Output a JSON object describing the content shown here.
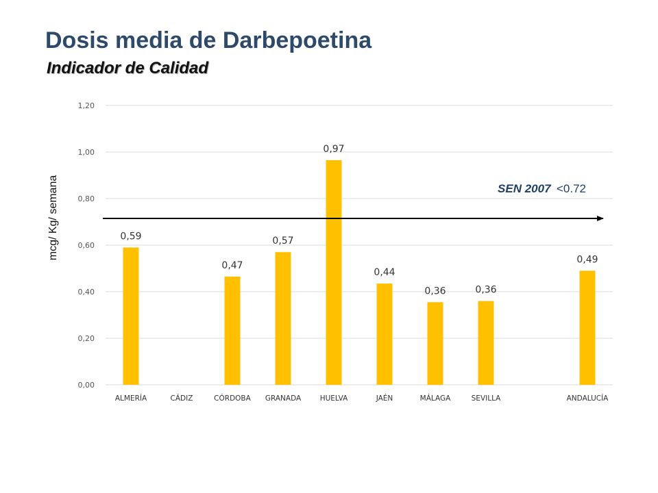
{
  "header": {
    "title": "Dosis media de Darbepoetina",
    "subtitle": "Indicador de Calidad"
  },
  "chart_data": {
    "type": "bar",
    "categories": [
      "ALMERÍA",
      "CÁDIZ",
      "CÓRDOBA",
      "GRANADA",
      "HUELVA",
      "JAÉN",
      "MÁLAGA",
      "SEVILLA",
      "",
      "ANDALUCÍA"
    ],
    "values": [
      0.59,
      null,
      0.465,
      0.57,
      0.965,
      0.435,
      0.355,
      0.36,
      null,
      0.49
    ],
    "data_labels": [
      "0,59",
      "",
      "0,47",
      "0,57",
      "0,97",
      "0,44",
      "0,36",
      "0,36",
      "",
      "0,49"
    ],
    "yticks": [
      0,
      0.2,
      0.4,
      0.6,
      0.8,
      1.0,
      1.2
    ],
    "ytick_labels": [
      "0,00",
      "0,20",
      "0,40",
      "0,60",
      "0,80",
      "1,00",
      "1,20"
    ],
    "ylim": [
      0,
      1.2
    ],
    "ylabel": "mcg/ Kg/ semana",
    "xlabel": "",
    "grid": true,
    "bar_color": "#ffc000",
    "grid_color": "#d9d9d9",
    "reference": {
      "name": "SEN 2007",
      "value_text": "<0.72",
      "y": 0.7,
      "color": "#000000"
    }
  }
}
